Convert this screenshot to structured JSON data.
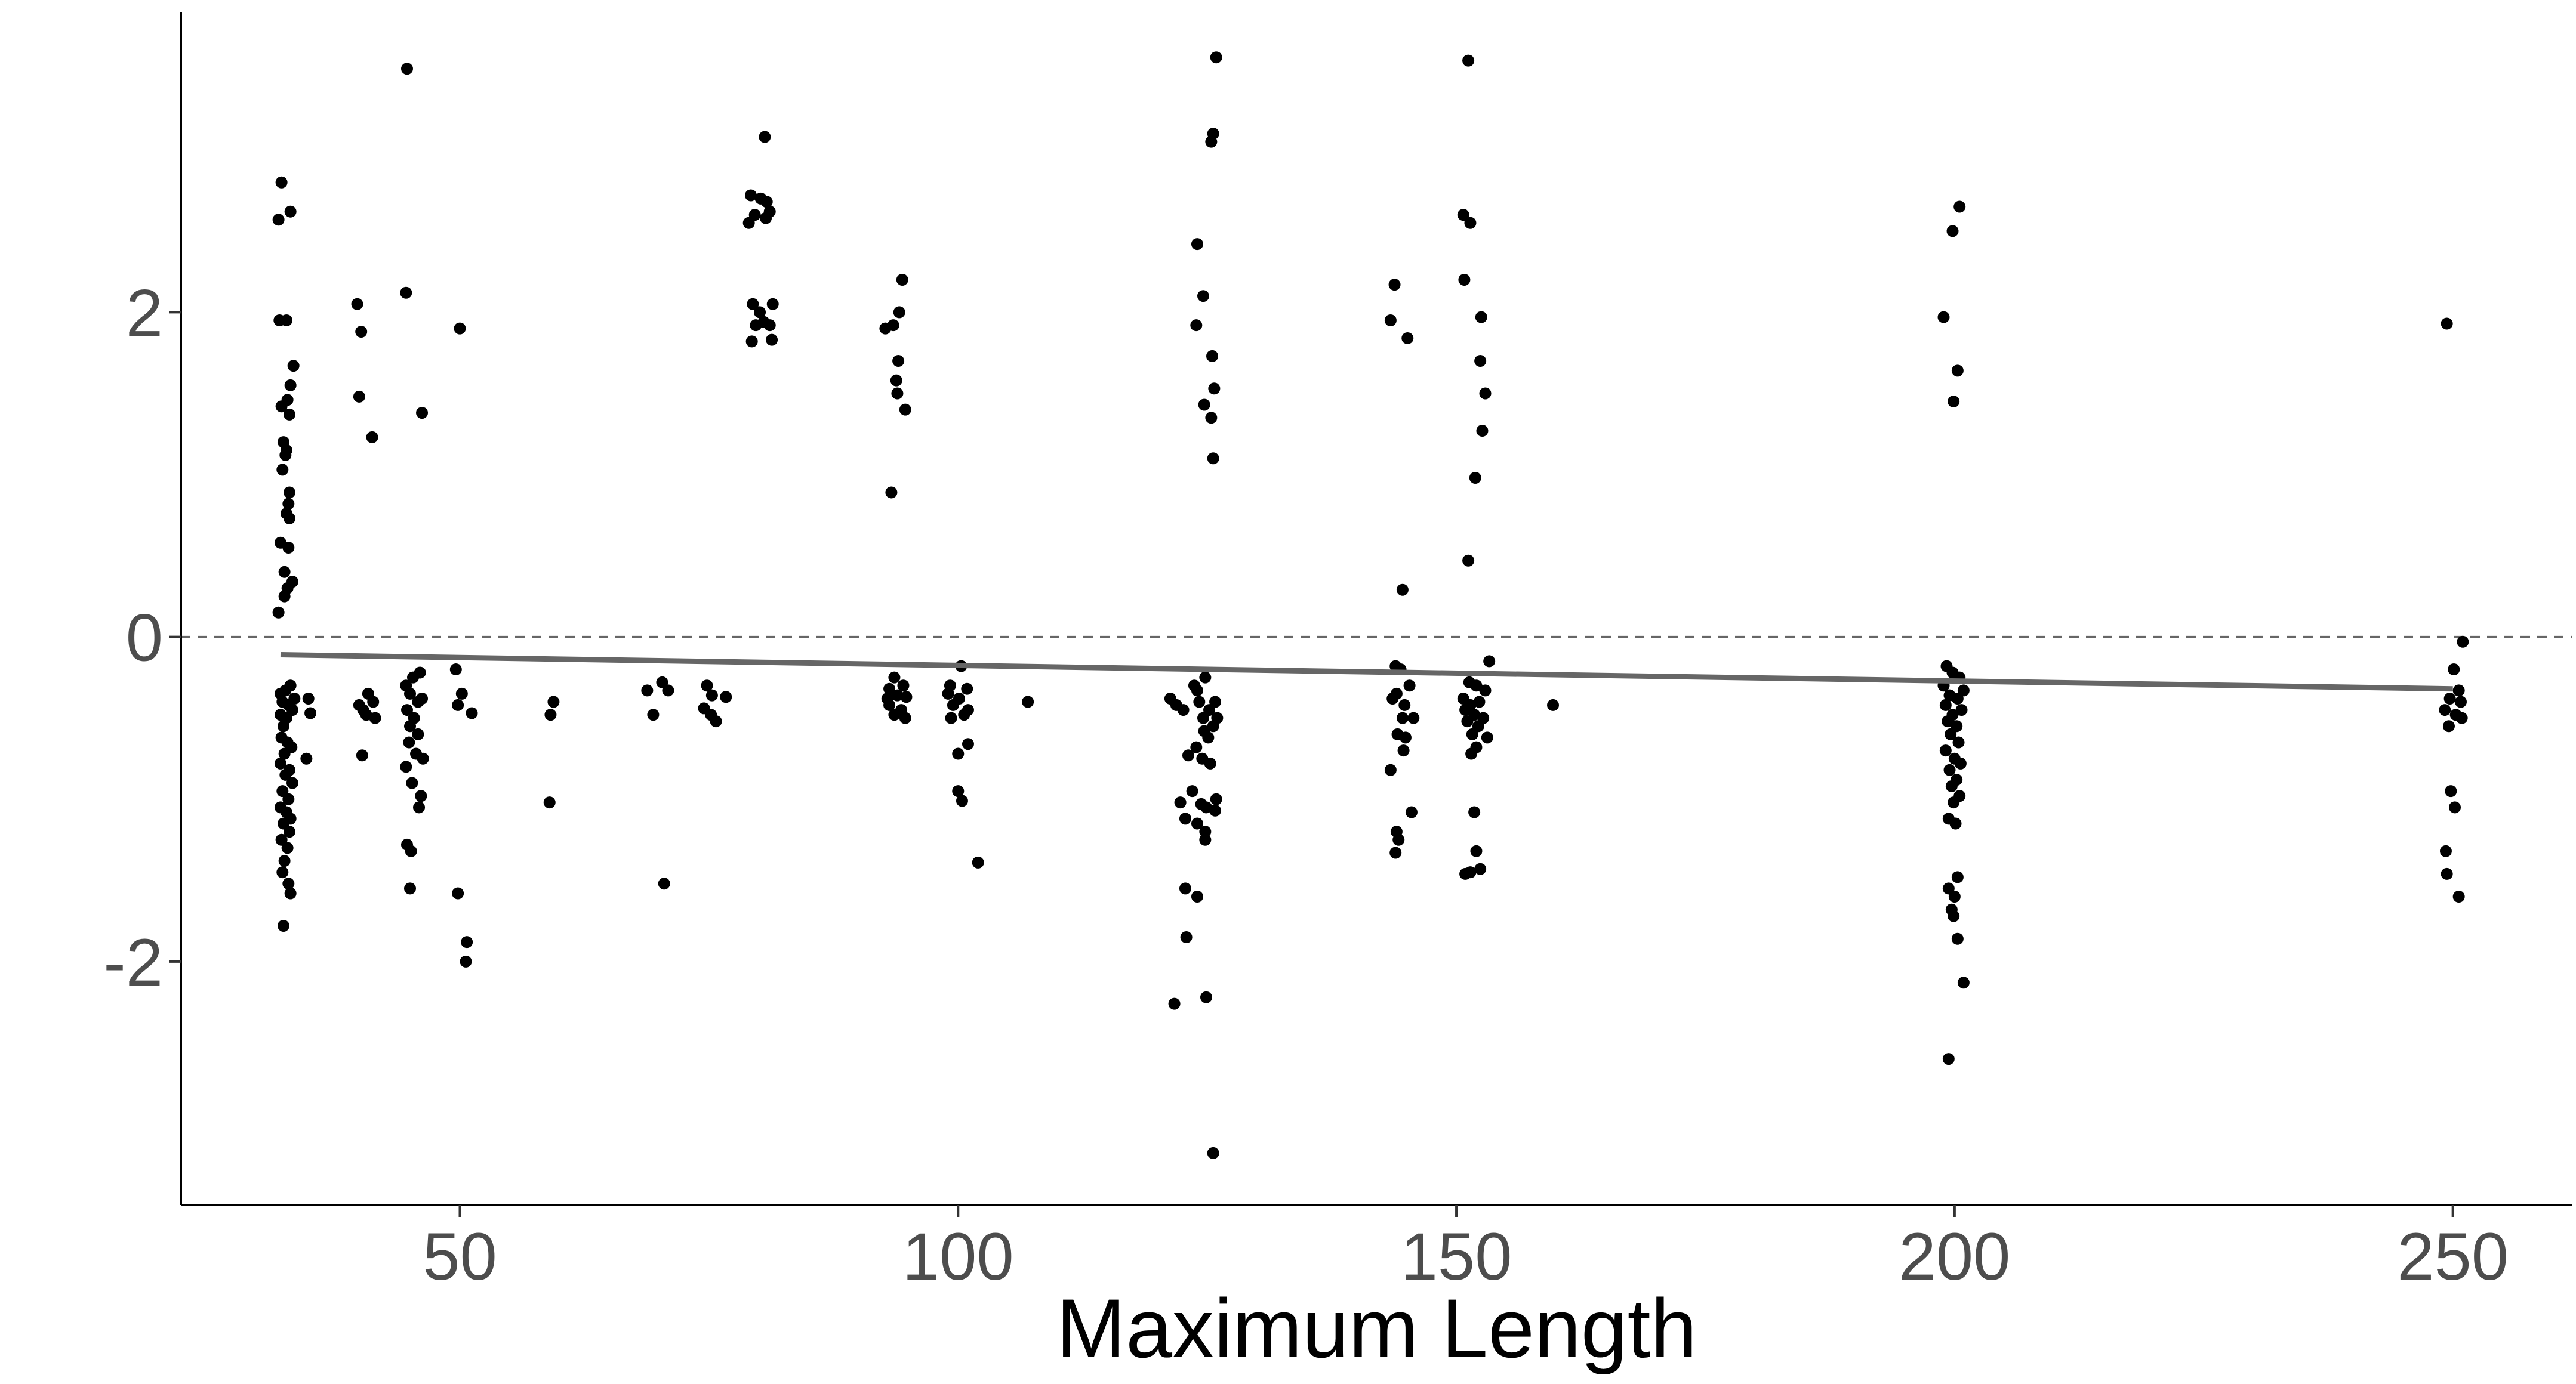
{
  "chart_data": {
    "type": "scatter",
    "title": "",
    "xlabel": "Maximum Length",
    "ylabel": "",
    "xlim": [
      22,
      262
    ],
    "ylim": [
      -3.5,
      3.85
    ],
    "x_ticks": [
      50,
      100,
      150,
      200,
      250
    ],
    "x_tick_labels": [
      "50",
      "100",
      "150",
      "200",
      "250"
    ],
    "y_ticks": [
      -2,
      0,
      2
    ],
    "y_tick_labels": [
      "-2",
      "0",
      "2"
    ],
    "grid": false,
    "legend": "none",
    "reference_line": {
      "y": 0,
      "style": "dashed",
      "color": "#666666"
    },
    "trend_line": {
      "x": [
        32,
        250
      ],
      "y": [
        -0.11,
        -0.32
      ],
      "color": "#666666"
    },
    "point_color": "#000000",
    "points": [
      [
        32.1,
        2.8
      ],
      [
        31.8,
        2.57
      ],
      [
        33.0,
        2.62
      ],
      [
        31.9,
        1.95
      ],
      [
        32.6,
        1.95
      ],
      [
        33.3,
        1.67
      ],
      [
        33.0,
        1.55
      ],
      [
        32.7,
        1.46
      ],
      [
        32.1,
        1.42
      ],
      [
        32.9,
        1.37
      ],
      [
        32.3,
        1.2
      ],
      [
        32.6,
        1.15
      ],
      [
        32.5,
        1.12
      ],
      [
        32.2,
        1.03
      ],
      [
        32.9,
        0.89
      ],
      [
        32.8,
        0.82
      ],
      [
        32.6,
        0.76
      ],
      [
        32.9,
        0.73
      ],
      [
        32.0,
        0.58
      ],
      [
        32.8,
        0.55
      ],
      [
        32.4,
        0.4
      ],
      [
        33.2,
        0.34
      ],
      [
        32.7,
        0.3
      ],
      [
        32.4,
        0.25
      ],
      [
        31.8,
        0.15
      ],
      [
        32.0,
        -0.35
      ],
      [
        32.5,
        -0.33
      ],
      [
        33.0,
        -0.3
      ],
      [
        32.2,
        -0.4
      ],
      [
        32.8,
        -0.42
      ],
      [
        33.2,
        -0.45
      ],
      [
        32.0,
        -0.48
      ],
      [
        32.6,
        -0.5
      ],
      [
        33.4,
        -0.38
      ],
      [
        32.3,
        -0.55
      ],
      [
        32.1,
        -0.62
      ],
      [
        32.7,
        -0.65
      ],
      [
        33.1,
        -0.68
      ],
      [
        32.4,
        -0.72
      ],
      [
        32.0,
        -0.78
      ],
      [
        32.9,
        -0.82
      ],
      [
        32.5,
        -0.85
      ],
      [
        33.2,
        -0.9
      ],
      [
        32.2,
        -0.95
      ],
      [
        32.8,
        -1.0
      ],
      [
        32.0,
        -1.05
      ],
      [
        32.6,
        -1.08
      ],
      [
        33.0,
        -1.12
      ],
      [
        32.3,
        -1.15
      ],
      [
        32.9,
        -1.2
      ],
      [
        32.1,
        -1.25
      ],
      [
        32.7,
        -1.3
      ],
      [
        32.4,
        -1.38
      ],
      [
        32.2,
        -1.45
      ],
      [
        32.8,
        -1.52
      ],
      [
        33.0,
        -1.58
      ],
      [
        32.3,
        -1.78
      ],
      [
        34.8,
        -0.38
      ],
      [
        35.0,
        -0.47
      ],
      [
        34.6,
        -0.75
      ],
      [
        39.7,
        2.05
      ],
      [
        40.1,
        1.88
      ],
      [
        39.9,
        1.48
      ],
      [
        41.2,
        1.23
      ],
      [
        39.9,
        -0.42
      ],
      [
        40.3,
        -0.45
      ],
      [
        40.8,
        -0.35
      ],
      [
        41.3,
        -0.4
      ],
      [
        40.6,
        -0.48
      ],
      [
        41.5,
        -0.5
      ],
      [
        40.2,
        -0.73
      ],
      [
        44.7,
        3.5
      ],
      [
        44.6,
        2.12
      ],
      [
        46.2,
        1.38
      ],
      [
        44.6,
        -0.3
      ],
      [
        45.3,
        -0.25
      ],
      [
        46.0,
        -0.22
      ],
      [
        45.0,
        -0.35
      ],
      [
        45.8,
        -0.4
      ],
      [
        44.7,
        -0.45
      ],
      [
        45.4,
        -0.5
      ],
      [
        46.2,
        -0.38
      ],
      [
        45.0,
        -0.55
      ],
      [
        45.8,
        -0.6
      ],
      [
        44.9,
        -0.65
      ],
      [
        45.6,
        -0.72
      ],
      [
        46.3,
        -0.75
      ],
      [
        44.6,
        -0.8
      ],
      [
        45.2,
        -0.9
      ],
      [
        46.1,
        -0.98
      ],
      [
        45.9,
        -1.05
      ],
      [
        44.7,
        -1.28
      ],
      [
        45.1,
        -1.32
      ],
      [
        45.0,
        -1.55
      ],
      [
        50.0,
        1.9
      ],
      [
        49.6,
        -0.2
      ],
      [
        50.2,
        -0.35
      ],
      [
        49.8,
        -0.42
      ],
      [
        51.2,
        -0.47
      ],
      [
        49.8,
        -1.58
      ],
      [
        50.7,
        -1.88
      ],
      [
        50.6,
        -2.0
      ],
      [
        59.4,
        -0.4
      ],
      [
        59.1,
        -0.48
      ],
      [
        59.0,
        -1.02
      ],
      [
        68.8,
        -0.33
      ],
      [
        70.3,
        -0.28
      ],
      [
        70.9,
        -0.33
      ],
      [
        69.4,
        -0.48
      ],
      [
        70.5,
        -1.52
      ],
      [
        74.8,
        -0.3
      ],
      [
        75.3,
        -0.36
      ],
      [
        76.7,
        -0.37
      ],
      [
        74.5,
        -0.44
      ],
      [
        75.2,
        -0.48
      ],
      [
        75.7,
        -0.52
      ],
      [
        80.6,
        3.08
      ],
      [
        79.2,
        2.72
      ],
      [
        80.2,
        2.7
      ],
      [
        80.8,
        2.68
      ],
      [
        79.6,
        2.6
      ],
      [
        81.1,
        2.62
      ],
      [
        79.0,
        2.55
      ],
      [
        80.7,
        2.58
      ],
      [
        79.4,
        2.05
      ],
      [
        80.1,
        2.0
      ],
      [
        81.4,
        2.05
      ],
      [
        79.7,
        1.92
      ],
      [
        80.5,
        1.94
      ],
      [
        81.1,
        1.92
      ],
      [
        79.3,
        1.82
      ],
      [
        81.3,
        1.83
      ],
      [
        92.7,
        1.9
      ],
      [
        93.5,
        1.92
      ],
      [
        94.4,
        2.2
      ],
      [
        94.1,
        2.0
      ],
      [
        94.0,
        1.7
      ],
      [
        93.8,
        1.58
      ],
      [
        93.9,
        1.5
      ],
      [
        94.7,
        1.4
      ],
      [
        93.3,
        0.89
      ],
      [
        93.6,
        -0.25
      ],
      [
        94.5,
        -0.3
      ],
      [
        93.1,
        -0.32
      ],
      [
        92.9,
        -0.38
      ],
      [
        93.9,
        -0.36
      ],
      [
        94.8,
        -0.37
      ],
      [
        93.1,
        -0.42
      ],
      [
        94.3,
        -0.45
      ],
      [
        93.6,
        -0.48
      ],
      [
        94.7,
        -0.5
      ],
      [
        100.3,
        -0.18
      ],
      [
        99.2,
        -0.3
      ],
      [
        100.9,
        -0.32
      ],
      [
        99.0,
        -0.35
      ],
      [
        100.1,
        -0.38
      ],
      [
        99.5,
        -0.42
      ],
      [
        101.0,
        -0.45
      ],
      [
        99.3,
        -0.5
      ],
      [
        100.6,
        -0.48
      ],
      [
        100.0,
        -0.72
      ],
      [
        101.0,
        -0.66
      ],
      [
        100.0,
        -0.95
      ],
      [
        100.4,
        -1.01
      ],
      [
        102.0,
        -1.39
      ],
      [
        107.0,
        -0.4
      ],
      [
        121.3,
        -0.38
      ],
      [
        121.9,
        -0.42
      ],
      [
        122.6,
        -0.45
      ],
      [
        123.7,
        -0.3
      ],
      [
        124.0,
        -0.33
      ],
      [
        124.8,
        -0.25
      ],
      [
        124.2,
        -0.4
      ],
      [
        125.2,
        -0.45
      ],
      [
        124.6,
        -0.5
      ],
      [
        125.8,
        -0.4
      ],
      [
        126.0,
        -0.5
      ],
      [
        124.7,
        -0.58
      ],
      [
        125.6,
        -0.55
      ],
      [
        125.1,
        -0.62
      ],
      [
        123.9,
        -0.68
      ],
      [
        124.5,
        -0.75
      ],
      [
        123.1,
        -0.73
      ],
      [
        125.3,
        -0.78
      ],
      [
        123.5,
        -0.95
      ],
      [
        125.9,
        -1.0
      ],
      [
        124.4,
        -1.03
      ],
      [
        122.3,
        -1.02
      ],
      [
        124.9,
        -1.05
      ],
      [
        125.8,
        -1.07
      ],
      [
        122.8,
        -1.12
      ],
      [
        124.0,
        -1.15
      ],
      [
        124.8,
        -1.2
      ],
      [
        124.8,
        -1.25
      ],
      [
        122.8,
        -1.55
      ],
      [
        124.0,
        -1.6
      ],
      [
        122.9,
        -1.85
      ],
      [
        124.9,
        -2.22
      ],
      [
        121.7,
        -2.26
      ],
      [
        125.6,
        -3.18
      ],
      [
        125.9,
        3.57
      ],
      [
        125.6,
        3.1
      ],
      [
        125.4,
        3.05
      ],
      [
        124.0,
        2.42
      ],
      [
        124.6,
        2.1
      ],
      [
        123.9,
        1.92
      ],
      [
        125.5,
        1.73
      ],
      [
        125.7,
        1.53
      ],
      [
        124.7,
        1.43
      ],
      [
        125.4,
        1.35
      ],
      [
        125.6,
        1.1
      ],
      [
        143.8,
        2.17
      ],
      [
        143.4,
        1.95
      ],
      [
        145.1,
        1.84
      ],
      [
        144.6,
        0.29
      ],
      [
        143.9,
        -0.18
      ],
      [
        144.4,
        -0.2
      ],
      [
        145.3,
        -0.3
      ],
      [
        144.0,
        -0.35
      ],
      [
        143.6,
        -0.38
      ],
      [
        144.8,
        -0.42
      ],
      [
        144.6,
        -0.5
      ],
      [
        145.7,
        -0.5
      ],
      [
        144.1,
        -0.6
      ],
      [
        144.9,
        -0.62
      ],
      [
        144.7,
        -0.7
      ],
      [
        143.4,
        -0.82
      ],
      [
        145.5,
        -1.08
      ],
      [
        144.0,
        -1.2
      ],
      [
        144.2,
        -1.25
      ],
      [
        143.9,
        -1.33
      ],
      [
        151.2,
        3.55
      ],
      [
        150.7,
        2.6
      ],
      [
        151.4,
        2.55
      ],
      [
        150.8,
        2.2
      ],
      [
        152.5,
        1.97
      ],
      [
        152.4,
        1.7
      ],
      [
        152.9,
        1.5
      ],
      [
        152.6,
        1.27
      ],
      [
        151.9,
        0.98
      ],
      [
        151.2,
        0.47
      ],
      [
        153.3,
        -0.15
      ],
      [
        151.3,
        -0.28
      ],
      [
        152.0,
        -0.3
      ],
      [
        152.9,
        -0.33
      ],
      [
        150.7,
        -0.38
      ],
      [
        151.4,
        -0.42
      ],
      [
        152.3,
        -0.4
      ],
      [
        150.9,
        -0.45
      ],
      [
        151.8,
        -0.48
      ],
      [
        152.7,
        -0.5
      ],
      [
        151.1,
        -0.52
      ],
      [
        152.2,
        -0.55
      ],
      [
        151.6,
        -0.6
      ],
      [
        153.1,
        -0.62
      ],
      [
        152.0,
        -0.68
      ],
      [
        151.5,
        -0.72
      ],
      [
        151.8,
        -1.08
      ],
      [
        152.0,
        -1.32
      ],
      [
        152.4,
        -1.43
      ],
      [
        151.4,
        -1.45
      ],
      [
        150.9,
        -1.46
      ],
      [
        159.7,
        -0.42
      ],
      [
        198.9,
        1.97
      ],
      [
        199.8,
        2.5
      ],
      [
        200.5,
        2.65
      ],
      [
        200.3,
        1.64
      ],
      [
        199.9,
        1.45
      ],
      [
        199.2,
        -0.18
      ],
      [
        199.8,
        -0.22
      ],
      [
        200.5,
        -0.25
      ],
      [
        198.9,
        -0.3
      ],
      [
        200.9,
        -0.33
      ],
      [
        199.5,
        -0.36
      ],
      [
        200.3,
        -0.38
      ],
      [
        199.1,
        -0.42
      ],
      [
        200.7,
        -0.45
      ],
      [
        199.8,
        -0.48
      ],
      [
        199.3,
        -0.52
      ],
      [
        200.2,
        -0.55
      ],
      [
        199.6,
        -0.6
      ],
      [
        200.4,
        -0.65
      ],
      [
        199.1,
        -0.7
      ],
      [
        200.0,
        -0.75
      ],
      [
        200.6,
        -0.78
      ],
      [
        199.5,
        -0.82
      ],
      [
        200.2,
        -0.88
      ],
      [
        199.7,
        -0.92
      ],
      [
        200.5,
        -0.98
      ],
      [
        199.9,
        -1.02
      ],
      [
        199.4,
        -1.12
      ],
      [
        200.1,
        -1.15
      ],
      [
        200.3,
        -1.48
      ],
      [
        199.4,
        -1.55
      ],
      [
        200.0,
        -1.6
      ],
      [
        199.7,
        -1.68
      ],
      [
        199.9,
        -1.72
      ],
      [
        200.3,
        -1.86
      ],
      [
        200.9,
        -2.13
      ],
      [
        199.4,
        -2.6
      ],
      [
        249.4,
        1.93
      ],
      [
        251.0,
        -0.03
      ],
      [
        250.1,
        -0.2
      ],
      [
        250.6,
        -0.33
      ],
      [
        249.7,
        -0.38
      ],
      [
        250.8,
        -0.4
      ],
      [
        249.2,
        -0.45
      ],
      [
        250.3,
        -0.48
      ],
      [
        250.9,
        -0.5
      ],
      [
        249.6,
        -0.55
      ],
      [
        249.8,
        -0.95
      ],
      [
        250.2,
        -1.05
      ],
      [
        249.3,
        -1.32
      ],
      [
        249.4,
        -1.46
      ],
      [
        250.6,
        -1.6
      ]
    ]
  }
}
